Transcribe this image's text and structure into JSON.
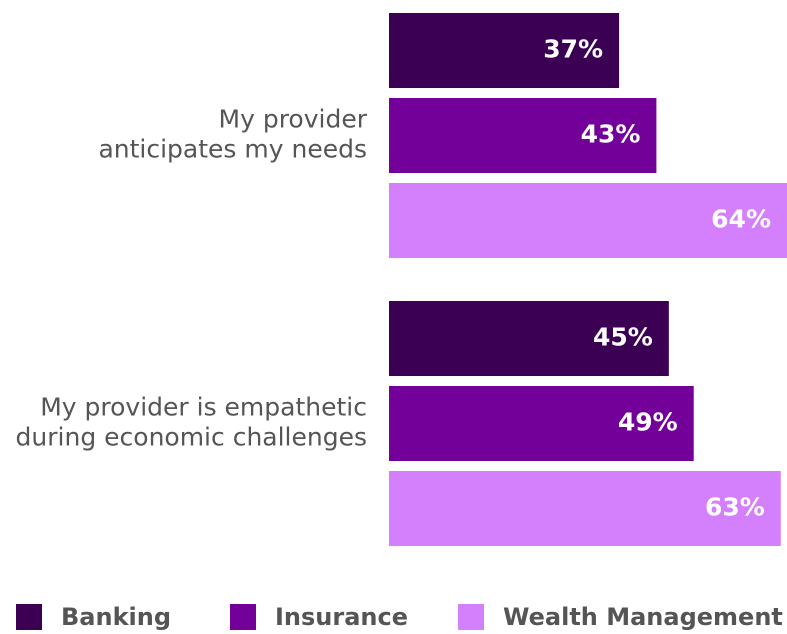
{
  "chart_data": {
    "type": "barh",
    "categories": [
      "My provider\nanticipates my needs",
      "My provider is empathetic\nduring economic challenges"
    ],
    "series": [
      {
        "name": "Banking",
        "color": "#3b0053",
        "values": [
          37,
          45
        ],
        "value_labels": [
          "37%",
          "45%"
        ]
      },
      {
        "name": "Insurance",
        "color": "#74009a",
        "values": [
          43,
          49
        ],
        "value_labels": [
          "43%",
          "49%"
        ]
      },
      {
        "name": "Wealth Management",
        "color": "#d480fc",
        "values": [
          64,
          63
        ],
        "value_labels": [
          "64%",
          "63%"
        ]
      }
    ],
    "xlim": [
      0,
      64
    ],
    "legend": "bottom"
  }
}
